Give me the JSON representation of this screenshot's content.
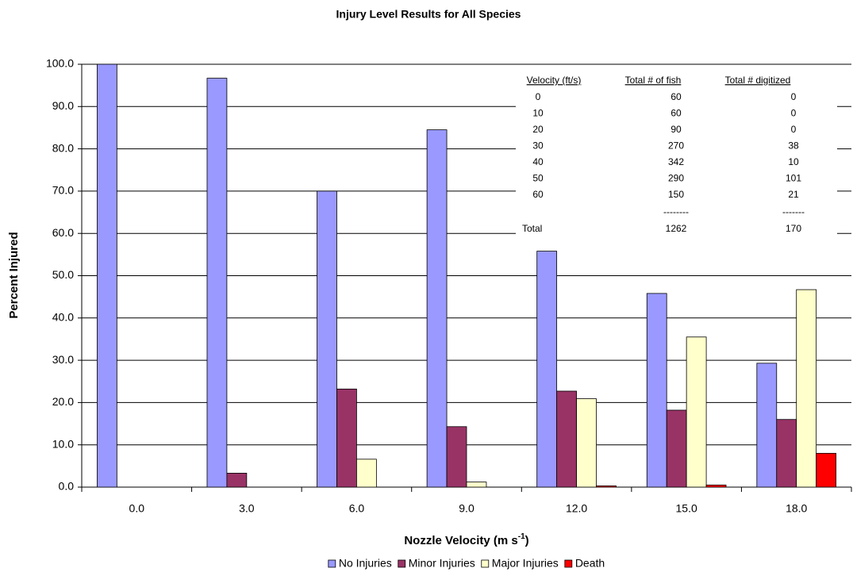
{
  "chart_data": {
    "type": "bar",
    "title": "Injury Level Results for All Species",
    "y_label": "Percent Injured",
    "x_label": [
      "Nozzle Velocity (m s",
      "-1",
      ")"
    ],
    "categories": [
      "0.0",
      "3.0",
      "6.0",
      "9.0",
      "12.0",
      "15.0",
      "18.0"
    ],
    "series": [
      {
        "name": "No Injuries",
        "color": "#9999ff",
        "values": [
          100.0,
          96.7,
          70.0,
          84.5,
          55.8,
          45.8,
          29.3
        ]
      },
      {
        "name": "Minor Injuries",
        "color": "#993366",
        "values": [
          0,
          3.3,
          23.2,
          14.3,
          22.7,
          18.2,
          16.0
        ]
      },
      {
        "name": "Major Injuries",
        "color": "#ffffcc",
        "values": [
          0,
          0,
          6.6,
          1.2,
          20.9,
          35.5,
          46.7
        ]
      },
      {
        "name": "Death",
        "color": "#ff0000",
        "values": [
          0,
          0,
          0,
          0,
          0.3,
          0.5,
          8.0
        ]
      }
    ],
    "ylim": [
      0,
      100
    ],
    "yticks": [
      {
        "value": 0,
        "label": "0.0"
      },
      {
        "value": 10,
        "label": "10.0"
      },
      {
        "value": 20,
        "label": "20.0"
      },
      {
        "value": 30,
        "label": "30.0"
      },
      {
        "value": 40,
        "label": "40.0"
      },
      {
        "value": 50,
        "label": "50.0"
      },
      {
        "value": 60,
        "label": "60.0"
      },
      {
        "value": 70,
        "label": "70.0"
      },
      {
        "value": 80,
        "label": "80.0"
      },
      {
        "value": 90,
        "label": "90.0"
      },
      {
        "value": 100,
        "label": "100.0"
      }
    ],
    "grid": true,
    "legend": "bottom",
    "annotation_table": {
      "columns": [
        "Velocity (ft/s)",
        "Total # of fish",
        "Total # digitized"
      ],
      "rows": [
        [
          0,
          60,
          0
        ],
        [
          10,
          60,
          0
        ],
        [
          20,
          90,
          0
        ],
        [
          30,
          270,
          38
        ],
        [
          40,
          342,
          10
        ],
        [
          50,
          290,
          101
        ],
        [
          60,
          150,
          21
        ]
      ],
      "separator": [
        "--------",
        "-------"
      ],
      "total": [
        "Total",
        1262,
        170
      ]
    }
  }
}
